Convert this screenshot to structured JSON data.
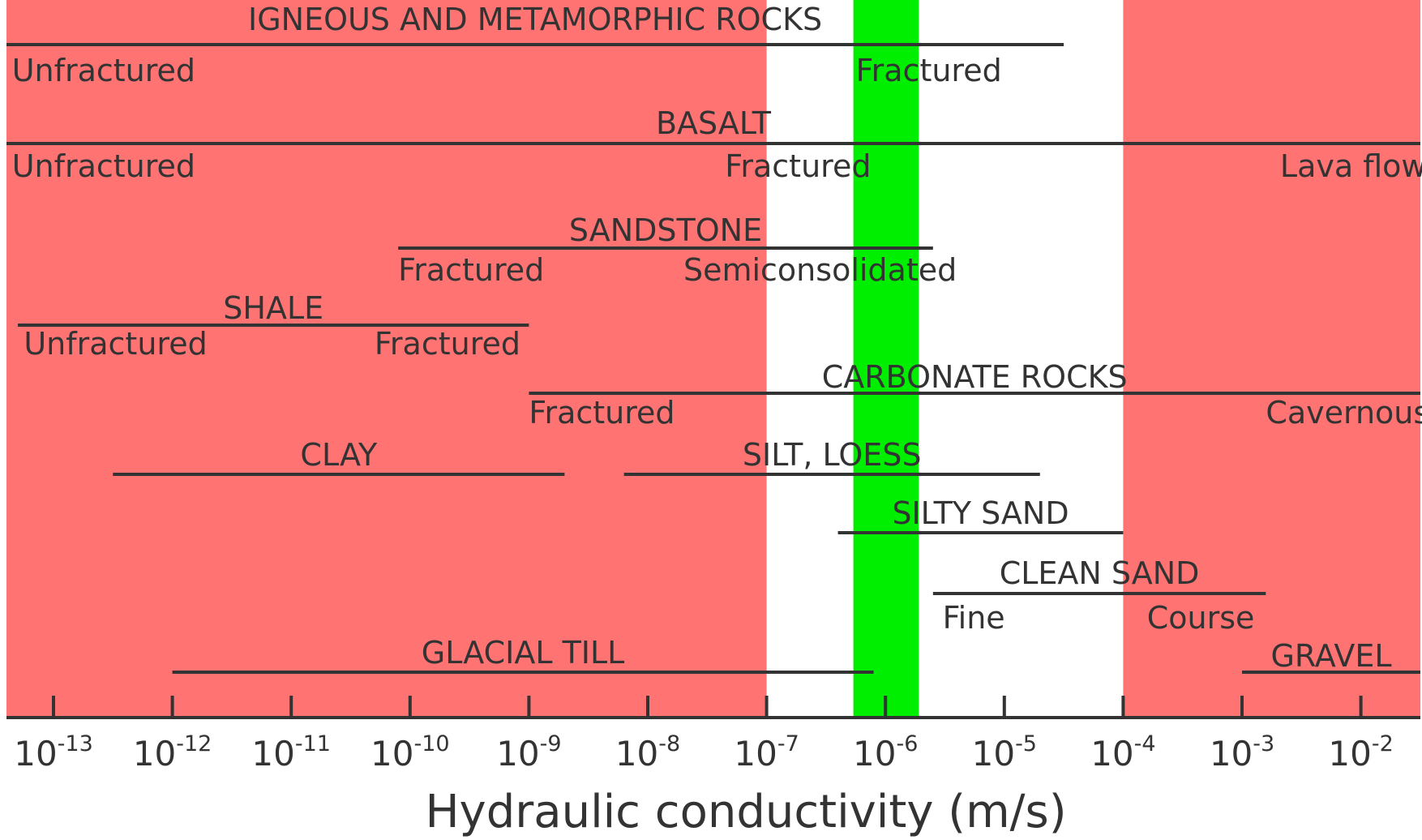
{
  "chart_data": {
    "type": "range",
    "xscale": "log10",
    "xlim_exponent": [
      -13.4,
      -1.4
    ],
    "xlabel": "Hydraulic conductivity (m/s)",
    "ticks": [
      {
        "base": "10",
        "exp": "-13",
        "value": -13
      },
      {
        "base": "10",
        "exp": "-12",
        "value": -12
      },
      {
        "base": "10",
        "exp": "-11",
        "value": -11
      },
      {
        "base": "10",
        "exp": "-10",
        "value": -10
      },
      {
        "base": "10",
        "exp": "-9",
        "value": -9
      },
      {
        "base": "10",
        "exp": "-8",
        "value": -8
      },
      {
        "base": "10",
        "exp": "-7",
        "value": -7
      },
      {
        "base": "10",
        "exp": "-6",
        "value": -6
      },
      {
        "base": "10",
        "exp": "-5",
        "value": -5
      },
      {
        "base": "10",
        "exp": "-4",
        "value": -4
      },
      {
        "base": "10",
        "exp": "-3",
        "value": -3
      },
      {
        "base": "10",
        "exp": "-2",
        "value": -2
      }
    ],
    "bands": [
      {
        "from": -13.4,
        "to": -7.0,
        "color": "#ff7373"
      },
      {
        "from": -4.0,
        "to": -1.4,
        "color": "#ff7373"
      },
      {
        "from": -6.27,
        "to": -5.72,
        "color": "#00ee00"
      }
    ],
    "materials": [
      {
        "name": "IGNEOUS AND METAMORPHIC ROCKS",
        "range": [
          -13.4,
          -4.5
        ],
        "sub": [
          {
            "text": "Unfractured",
            "at": -13.35
          },
          {
            "text": "Fractured",
            "at": -6.25
          }
        ]
      },
      {
        "name": "BASALT",
        "range": [
          -13.4,
          -1.4
        ],
        "sub": [
          {
            "text": "Unfractured",
            "at": -13.35
          },
          {
            "text": "Fractured",
            "at": -7.35
          },
          {
            "text": "Lava flow",
            "at": -2.68
          }
        ]
      },
      {
        "name": "SANDSTONE",
        "range": [
          -10.1,
          -5.6
        ],
        "sub": [
          {
            "text": "Fractured",
            "at": -10.1
          },
          {
            "text": "Semiconsolidated",
            "at": -7.7
          }
        ]
      },
      {
        "name": "SHALE",
        "range": [
          -13.3,
          -9.0
        ],
        "sub": [
          {
            "text": "Unfractured",
            "at": -13.25
          },
          {
            "text": "Fractured",
            "at": -10.3
          }
        ]
      },
      {
        "name": "CARBONATE ROCKS",
        "range": [
          -9.0,
          -1.4
        ],
        "sub": [
          {
            "text": "Fractured",
            "at": -9.0
          },
          {
            "text": "Cavernous",
            "at": -2.8
          }
        ]
      },
      {
        "name": "CLAY",
        "range": [
          -12.5,
          -8.7
        ],
        "sub": []
      },
      {
        "name": "SILT, LOESS",
        "range": [
          -8.2,
          -4.7
        ],
        "sub": []
      },
      {
        "name": "SILTY SAND",
        "range": [
          -6.4,
          -4.0
        ],
        "sub": []
      },
      {
        "name": "CLEAN SAND",
        "range": [
          -5.6,
          -2.8
        ],
        "sub": [
          {
            "text": "Fine",
            "at": -5.52
          },
          {
            "text": "Course",
            "at": -3.8
          }
        ]
      },
      {
        "name": "GLACIAL TILL",
        "range": [
          -12.0,
          -6.1
        ],
        "sub": []
      },
      {
        "name": "GRAVEL",
        "range": [
          -3.0,
          -1.4
        ],
        "sub": []
      }
    ]
  }
}
